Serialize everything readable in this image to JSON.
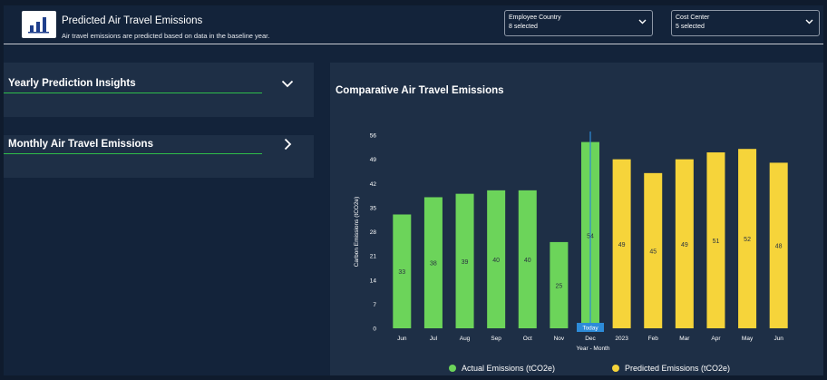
{
  "header": {
    "title": "Predicted Air Travel Emissions",
    "subtitle": "Air travel emissions are predicted based on data in the baseline year.",
    "logo_icon": "bar-chart-icon"
  },
  "filters": [
    {
      "label": "Employee Country",
      "value": "8 selected"
    },
    {
      "label": "Cost Center",
      "value": "5 selected"
    }
  ],
  "panels": [
    {
      "title": "Yearly Prediction Insights",
      "icon": "chevron-down-icon"
    },
    {
      "title": "Monthly Air Travel Emissions",
      "icon": "chevron-right-icon"
    }
  ],
  "chart_title": "Comparative Air Travel Emissions",
  "colors": {
    "actual": "#6cd45a",
    "predicted": "#f6d43a",
    "accent_line": "#2fbd4a",
    "today_marker": "#2d8bd8"
  },
  "chart_data": {
    "type": "bar",
    "title": "Comparative Air Travel Emissions",
    "xlabel": "Year - Month",
    "ylabel": "Carbon Emissions (tCO2e)",
    "ylim": [
      0,
      56
    ],
    "yticks": [
      0,
      7,
      14,
      21,
      28,
      35,
      42,
      49,
      56
    ],
    "categories": [
      "Jun",
      "Jul",
      "Aug",
      "Sep",
      "Oct",
      "Nov",
      "Dec",
      "2023",
      "Feb",
      "Mar",
      "Apr",
      "May",
      "Jun"
    ],
    "series": [
      {
        "name": "Actual Emissions (tCO2e)",
        "values": [
          33,
          38,
          39,
          40,
          40,
          25,
          54,
          null,
          null,
          null,
          null,
          null,
          null
        ]
      },
      {
        "name": "Predicted Emissions (tCO2e)",
        "values": [
          null,
          null,
          null,
          null,
          null,
          null,
          null,
          49,
          45,
          49,
          51,
          52,
          48
        ]
      }
    ],
    "marker": {
      "category": "Dec",
      "label": "Today"
    },
    "legend_position": "bottom"
  }
}
